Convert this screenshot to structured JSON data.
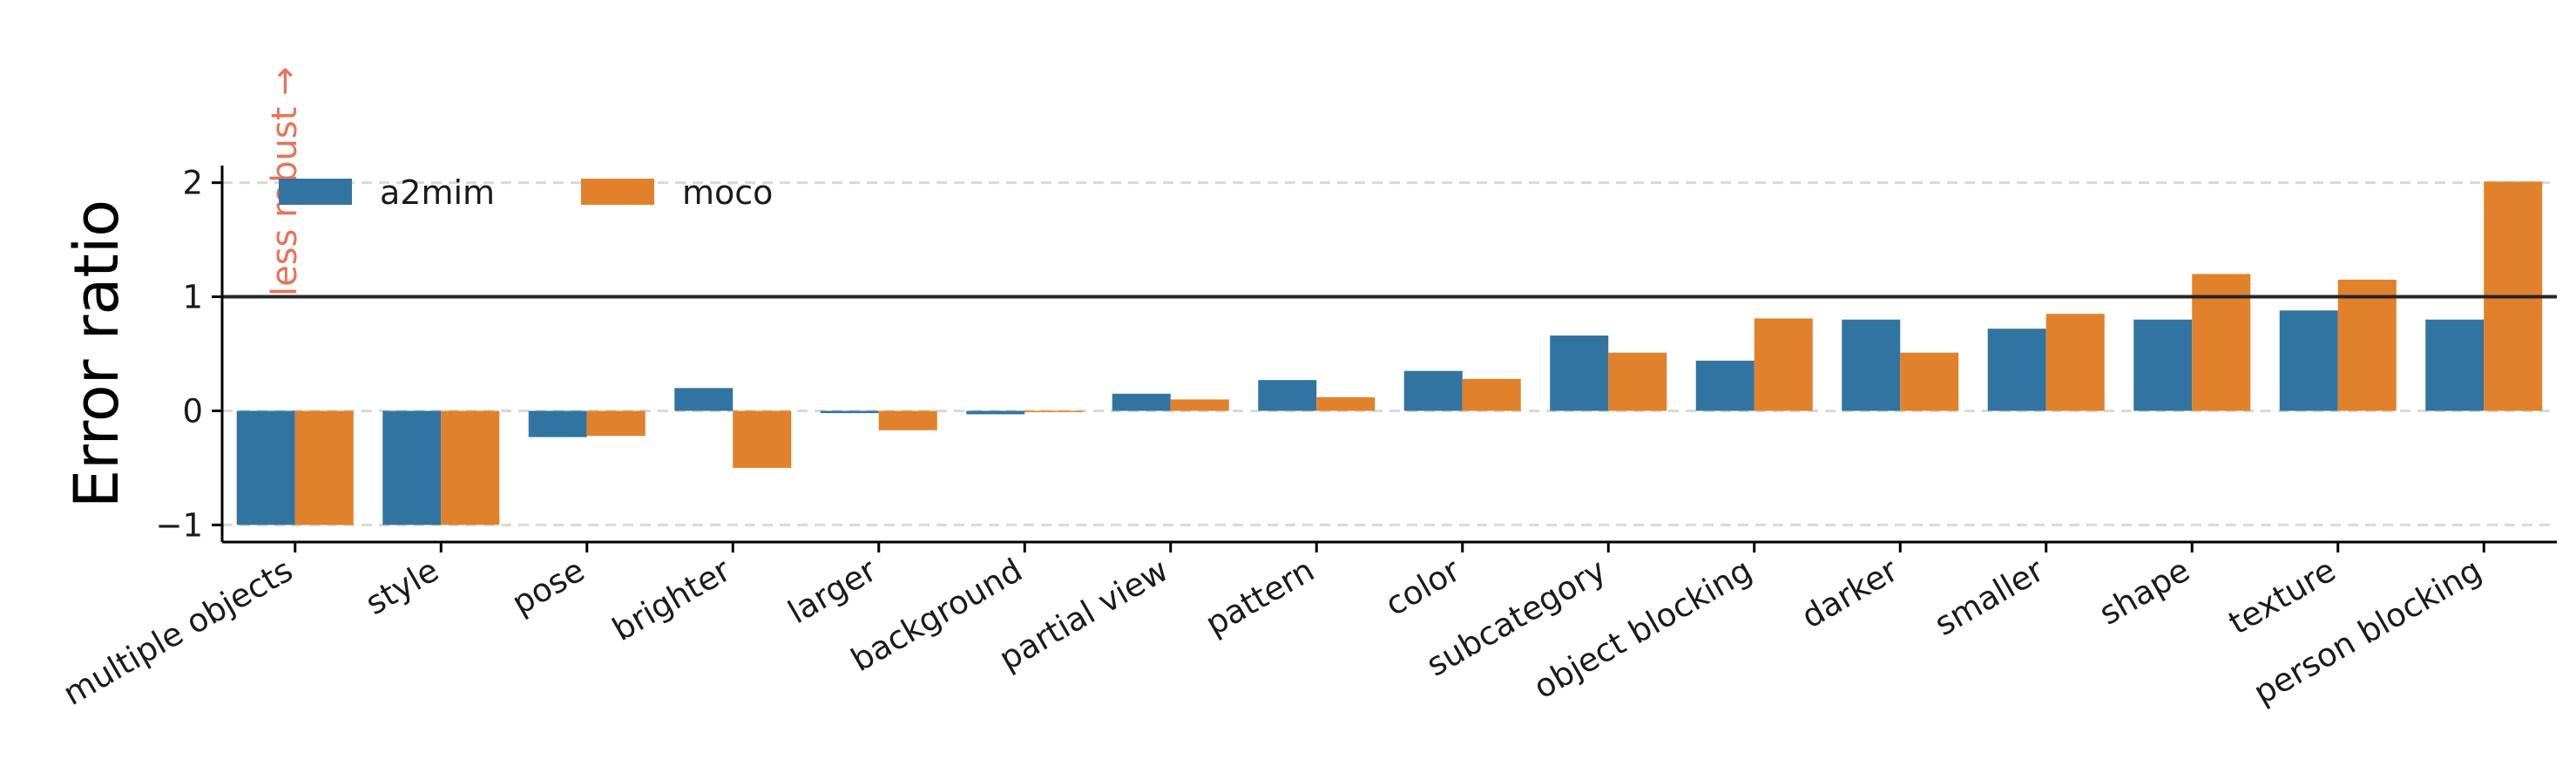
{
  "chart_data": {
    "type": "bar",
    "ylabel": "Error ratio",
    "xlabel": "",
    "ylim": [
      -1.15,
      2.15
    ],
    "yticks": [
      -1,
      0,
      1,
      2
    ],
    "ytick_labels": [
      "−1",
      "0",
      "1",
      "2"
    ],
    "grid": "horizontal dashed",
    "reference_line": 1,
    "legend_placement": "top-left",
    "annotation": "less robust →",
    "categories": [
      "multiple objects",
      "style",
      "pose",
      "brighter",
      "larger",
      "background",
      "partial view",
      "pattern",
      "color",
      "subcategory",
      "object blocking",
      "darker",
      "smaller",
      "shape",
      "texture",
      "person blocking"
    ],
    "series": [
      {
        "name": "a2mim",
        "color": "#3274a1",
        "values": [
          -1.0,
          -1.0,
          -0.23,
          0.2,
          -0.02,
          -0.03,
          0.15,
          0.27,
          0.35,
          0.66,
          0.44,
          0.8,
          0.72,
          0.8,
          0.88,
          0.8
        ]
      },
      {
        "name": "moco",
        "color": "#e1812c",
        "values": [
          -1.0,
          -1.0,
          -0.22,
          -0.5,
          -0.17,
          -0.01,
          0.1,
          0.12,
          0.28,
          0.51,
          0.81,
          0.51,
          0.85,
          1.2,
          1.15,
          2.01
        ]
      }
    ]
  },
  "colors": {
    "annotation": "#e8735a",
    "reference_line": "#262626",
    "grid": "#d9d9d9"
  }
}
